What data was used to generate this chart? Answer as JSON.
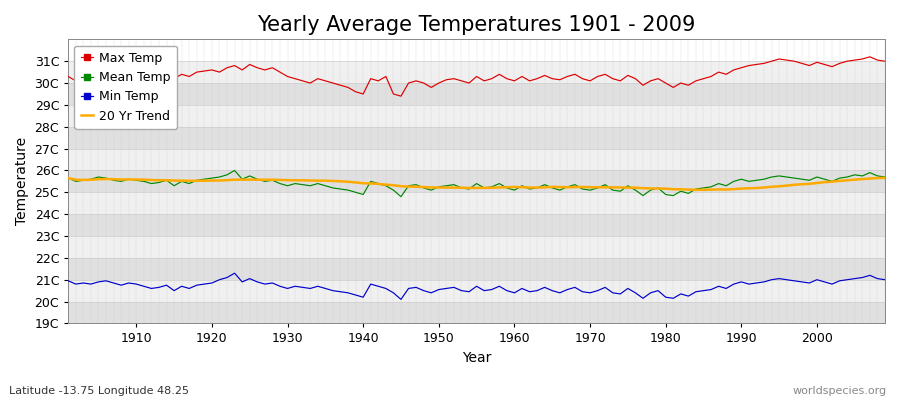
{
  "title": "Yearly Average Temperatures 1901 - 2009",
  "xlabel": "Year",
  "ylabel": "Temperature",
  "subtitle_lat": "Latitude -13.75 Longitude 48.25",
  "watermark": "worldspecies.org",
  "ylim": [
    19,
    32
  ],
  "ytick_labels": [
    "19C",
    "20C",
    "21C",
    "22C",
    "23C",
    "24C",
    "25C",
    "26C",
    "27C",
    "28C",
    "29C",
    "30C",
    "31C"
  ],
  "ytick_values": [
    19,
    20,
    21,
    22,
    23,
    24,
    25,
    26,
    27,
    28,
    29,
    30,
    31
  ],
  "xlim": [
    1901,
    2009
  ],
  "xtick_values": [
    1910,
    1920,
    1930,
    1940,
    1950,
    1960,
    1970,
    1980,
    1990,
    2000
  ],
  "legend_labels": [
    "Max Temp",
    "Mean Temp",
    "Min Temp",
    "20 Yr Trend"
  ],
  "legend_colors": [
    "#dd0000",
    "#008800",
    "#0000cc",
    "#ffaa00"
  ],
  "line_colors": {
    "max": "#dd0000",
    "mean": "#008800",
    "min": "#0000cc",
    "trend": "#ffaa00"
  },
  "bg_color": "#ffffff",
  "plot_bg_color_light": "#f0f0f0",
  "plot_bg_color_dark": "#e0e0e0",
  "grid_color": "#cccccc",
  "title_fontsize": 15,
  "axis_label_fontsize": 10,
  "tick_label_fontsize": 9,
  "legend_fontsize": 9,
  "max_temps": [
    30.3,
    30.1,
    30.2,
    30.15,
    30.35,
    30.45,
    30.5,
    30.4,
    30.3,
    30.55,
    30.4,
    30.3,
    30.5,
    30.3,
    30.2,
    30.4,
    30.3,
    30.5,
    30.55,
    30.6,
    30.5,
    30.7,
    30.8,
    30.6,
    30.85,
    30.7,
    30.6,
    30.7,
    30.5,
    30.3,
    30.2,
    30.1,
    30.0,
    30.2,
    30.1,
    30.0,
    29.9,
    29.8,
    29.6,
    29.5,
    30.2,
    30.1,
    30.3,
    29.5,
    29.4,
    30.0,
    30.1,
    30.0,
    29.8,
    30.0,
    30.15,
    30.2,
    30.1,
    30.0,
    30.3,
    30.1,
    30.2,
    30.4,
    30.2,
    30.1,
    30.3,
    30.1,
    30.2,
    30.35,
    30.2,
    30.15,
    30.3,
    30.4,
    30.2,
    30.1,
    30.3,
    30.4,
    30.2,
    30.1,
    30.35,
    30.2,
    29.9,
    30.1,
    30.2,
    30.0,
    29.8,
    30.0,
    29.9,
    30.1,
    30.2,
    30.3,
    30.5,
    30.4,
    30.6,
    30.7,
    30.8,
    30.85,
    30.9,
    31.0,
    31.1,
    31.05,
    31.0,
    30.9,
    30.8,
    30.95,
    30.85,
    30.75,
    30.9,
    31.0,
    31.05,
    31.1,
    31.2,
    31.05,
    31.0
  ],
  "mean_temps": [
    25.65,
    25.5,
    25.55,
    25.6,
    25.7,
    25.65,
    25.55,
    25.5,
    25.6,
    25.55,
    25.5,
    25.4,
    25.45,
    25.55,
    25.3,
    25.5,
    25.4,
    25.55,
    25.6,
    25.65,
    25.7,
    25.8,
    26.0,
    25.6,
    25.75,
    25.6,
    25.5,
    25.55,
    25.4,
    25.3,
    25.4,
    25.35,
    25.3,
    25.4,
    25.3,
    25.2,
    25.15,
    25.1,
    25.0,
    24.9,
    25.5,
    25.4,
    25.3,
    25.1,
    24.8,
    25.3,
    25.35,
    25.2,
    25.1,
    25.25,
    25.3,
    25.35,
    25.2,
    25.15,
    25.4,
    25.2,
    25.25,
    25.4,
    25.2,
    25.1,
    25.3,
    25.15,
    25.2,
    25.35,
    25.2,
    25.1,
    25.25,
    25.35,
    25.15,
    25.1,
    25.2,
    25.35,
    25.1,
    25.05,
    25.3,
    25.1,
    24.85,
    25.1,
    25.2,
    24.9,
    24.85,
    25.05,
    24.95,
    25.15,
    25.2,
    25.25,
    25.4,
    25.3,
    25.5,
    25.6,
    25.5,
    25.55,
    25.6,
    25.7,
    25.75,
    25.7,
    25.65,
    25.6,
    25.55,
    25.7,
    25.6,
    25.5,
    25.65,
    25.7,
    25.8,
    25.75,
    25.9,
    25.75,
    25.7
  ],
  "min_temps": [
    20.95,
    20.8,
    20.85,
    20.8,
    20.9,
    20.95,
    20.85,
    20.75,
    20.85,
    20.8,
    20.7,
    20.6,
    20.65,
    20.75,
    20.5,
    20.7,
    20.6,
    20.75,
    20.8,
    20.85,
    21.0,
    21.1,
    21.3,
    20.9,
    21.05,
    20.9,
    20.8,
    20.85,
    20.7,
    20.6,
    20.7,
    20.65,
    20.6,
    20.7,
    20.6,
    20.5,
    20.45,
    20.4,
    20.3,
    20.2,
    20.8,
    20.7,
    20.6,
    20.4,
    20.1,
    20.6,
    20.65,
    20.5,
    20.4,
    20.55,
    20.6,
    20.65,
    20.5,
    20.45,
    20.7,
    20.5,
    20.55,
    20.7,
    20.5,
    20.4,
    20.6,
    20.45,
    20.5,
    20.65,
    20.5,
    20.4,
    20.55,
    20.65,
    20.45,
    20.4,
    20.5,
    20.65,
    20.4,
    20.35,
    20.6,
    20.4,
    20.15,
    20.4,
    20.5,
    20.2,
    20.15,
    20.35,
    20.25,
    20.45,
    20.5,
    20.55,
    20.7,
    20.6,
    20.8,
    20.9,
    20.8,
    20.85,
    20.9,
    21.0,
    21.05,
    21.0,
    20.95,
    20.9,
    20.85,
    21.0,
    20.9,
    20.8,
    20.95,
    21.0,
    21.05,
    21.1,
    21.2,
    21.05,
    21.0
  ]
}
